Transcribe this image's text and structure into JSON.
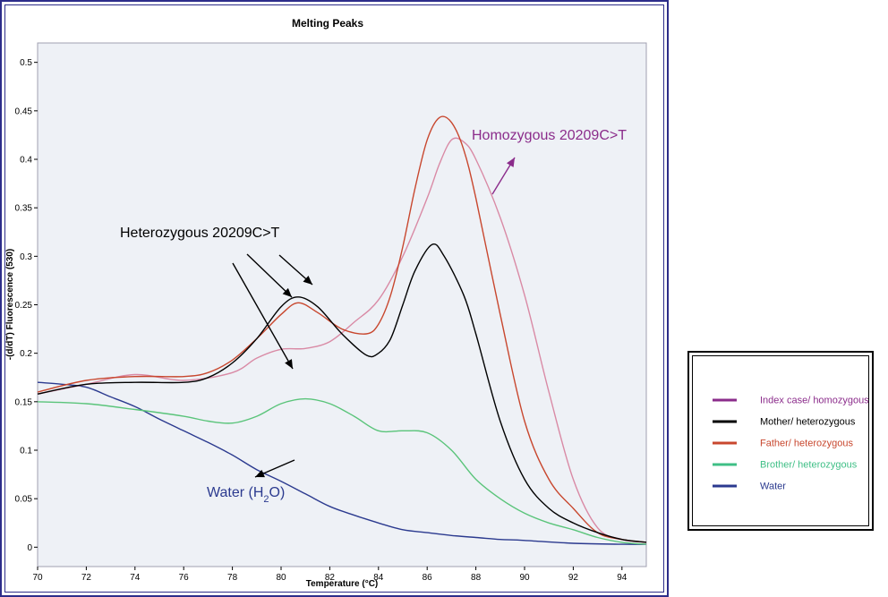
{
  "chart_data": {
    "type": "line",
    "title": "Melting Peaks",
    "xlabel": "Temperature (°C)",
    "ylabel": "-(d/dT) Fluorescence (530)",
    "xlim": [
      70,
      95
    ],
    "ylim": [
      -0.02,
      0.52
    ],
    "x_ticks": [
      "70",
      "72",
      "74",
      "76",
      "78",
      "80",
      "82",
      "84",
      "86",
      "88",
      "90",
      "92",
      "94"
    ],
    "y_ticks": [
      "0",
      "0.05",
      "0.1",
      "0.15",
      "0.2",
      "0.25",
      "0.3",
      "0.35",
      "0.4",
      "0.45",
      "0.5"
    ],
    "grid": false,
    "legend_position": "right",
    "series": [
      {
        "name": "Index case/ homozygous",
        "color": "#d98aa5",
        "points": [
          [
            70,
            0.158
          ],
          [
            72,
            0.168
          ],
          [
            74,
            0.178
          ],
          [
            76,
            0.172
          ],
          [
            78,
            0.18
          ],
          [
            79,
            0.195
          ],
          [
            80,
            0.204
          ],
          [
            81,
            0.205
          ],
          [
            82,
            0.212
          ],
          [
            83,
            0.232
          ],
          [
            84,
            0.255
          ],
          [
            85,
            0.3
          ],
          [
            86,
            0.36
          ],
          [
            86.5,
            0.395
          ],
          [
            87,
            0.42
          ],
          [
            87.5,
            0.418
          ],
          [
            88,
            0.4
          ],
          [
            89,
            0.34
          ],
          [
            90,
            0.26
          ],
          [
            91,
            0.16
          ],
          [
            92,
            0.07
          ],
          [
            93,
            0.02
          ],
          [
            94,
            0.008
          ],
          [
            95,
            0.005
          ]
        ]
      },
      {
        "name": "Mother/ heterozygous",
        "color": "#000000",
        "points": [
          [
            70,
            0.158
          ],
          [
            72,
            0.168
          ],
          [
            74,
            0.17
          ],
          [
            76,
            0.17
          ],
          [
            77,
            0.175
          ],
          [
            78,
            0.19
          ],
          [
            79,
            0.215
          ],
          [
            80,
            0.248
          ],
          [
            80.7,
            0.258
          ],
          [
            81.5,
            0.248
          ],
          [
            82.5,
            0.22
          ],
          [
            83.5,
            0.198
          ],
          [
            84,
            0.2
          ],
          [
            84.5,
            0.215
          ],
          [
            85,
            0.25
          ],
          [
            85.5,
            0.285
          ],
          [
            86.2,
            0.312
          ],
          [
            86.7,
            0.3
          ],
          [
            87.5,
            0.26
          ],
          [
            88,
            0.22
          ],
          [
            89,
            0.13
          ],
          [
            90,
            0.07
          ],
          [
            91,
            0.04
          ],
          [
            92,
            0.025
          ],
          [
            93,
            0.015
          ],
          [
            94,
            0.008
          ],
          [
            95,
            0.005
          ]
        ]
      },
      {
        "name": "Father/ heterozygous",
        "color": "#c8472e",
        "points": [
          [
            70,
            0.16
          ],
          [
            72,
            0.172
          ],
          [
            74,
            0.176
          ],
          [
            76,
            0.176
          ],
          [
            77,
            0.18
          ],
          [
            78,
            0.193
          ],
          [
            79,
            0.215
          ],
          [
            80,
            0.24
          ],
          [
            80.7,
            0.252
          ],
          [
            81.5,
            0.242
          ],
          [
            82.5,
            0.225
          ],
          [
            83.5,
            0.22
          ],
          [
            84,
            0.23
          ],
          [
            84.5,
            0.26
          ],
          [
            85,
            0.31
          ],
          [
            85.5,
            0.37
          ],
          [
            86,
            0.42
          ],
          [
            86.5,
            0.443
          ],
          [
            87,
            0.438
          ],
          [
            87.5,
            0.41
          ],
          [
            88,
            0.36
          ],
          [
            89,
            0.24
          ],
          [
            90,
            0.13
          ],
          [
            91,
            0.07
          ],
          [
            92,
            0.04
          ],
          [
            93,
            0.015
          ],
          [
            94,
            0.008
          ],
          [
            95,
            0.005
          ]
        ]
      },
      {
        "name": "Brother/ heterozygous",
        "color": "#5ac47a",
        "points": [
          [
            70,
            0.15
          ],
          [
            72,
            0.148
          ],
          [
            74,
            0.142
          ],
          [
            76,
            0.135
          ],
          [
            77,
            0.13
          ],
          [
            78,
            0.128
          ],
          [
            79,
            0.135
          ],
          [
            80,
            0.148
          ],
          [
            81,
            0.153
          ],
          [
            82,
            0.148
          ],
          [
            83,
            0.135
          ],
          [
            84,
            0.12
          ],
          [
            85,
            0.12
          ],
          [
            86,
            0.118
          ],
          [
            87,
            0.1
          ],
          [
            88,
            0.07
          ],
          [
            89,
            0.05
          ],
          [
            90,
            0.035
          ],
          [
            91,
            0.025
          ],
          [
            92,
            0.018
          ],
          [
            93,
            0.01
          ],
          [
            94,
            0.005
          ],
          [
            95,
            0.003
          ]
        ]
      },
      {
        "name": "Water",
        "color": "#2b3a8f",
        "points": [
          [
            70,
            0.17
          ],
          [
            71,
            0.168
          ],
          [
            72,
            0.165
          ],
          [
            73,
            0.155
          ],
          [
            74,
            0.145
          ],
          [
            75,
            0.132
          ],
          [
            76,
            0.12
          ],
          [
            77,
            0.108
          ],
          [
            78,
            0.095
          ],
          [
            79,
            0.08
          ],
          [
            80,
            0.068
          ],
          [
            81,
            0.055
          ],
          [
            82,
            0.042
          ],
          [
            83,
            0.033
          ],
          [
            84,
            0.025
          ],
          [
            85,
            0.018
          ],
          [
            86,
            0.015
          ],
          [
            87,
            0.012
          ],
          [
            88,
            0.01
          ],
          [
            89,
            0.008
          ],
          [
            90,
            0.007
          ],
          [
            92,
            0.004
          ],
          [
            94,
            0.003
          ],
          [
            95,
            0.003
          ]
        ]
      }
    ],
    "annotations": [
      {
        "text_parts": [
          "Homozygous 20209C>T"
        ],
        "color": "#8b2c8b"
      },
      {
        "text_parts": [
          "Heterozygous 20209C>T"
        ],
        "color": "#000000"
      },
      {
        "text_parts": [
          "Water (H",
          "2",
          "O)"
        ],
        "color": "#2b3a8f"
      }
    ]
  },
  "legend": {
    "items": [
      {
        "label": "Index case/ homozygous",
        "color": "#8b2c8b"
      },
      {
        "label": "Mother/ heterozygous",
        "color": "#000000"
      },
      {
        "label": "Father/ heterozygous",
        "color": "#c8472e"
      },
      {
        "label": "Brother/ heterozygous",
        "color": "#3fbf86"
      },
      {
        "label": "Water",
        "color": "#2b3a8f"
      }
    ]
  }
}
